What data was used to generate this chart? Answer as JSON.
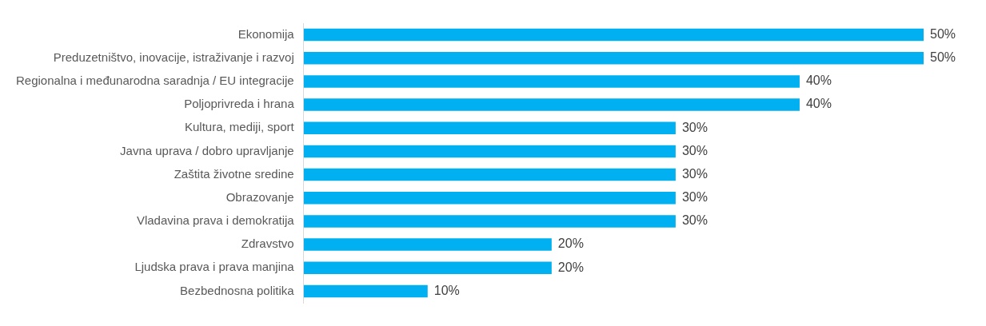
{
  "chart_data": {
    "type": "bar",
    "orientation": "horizontal",
    "categories": [
      "Ekonomija",
      "Preduzetništvo, inovacije, istraživanje i razvoj",
      "Regionalna i međunarodna saradnja / EU integracije",
      "Poljoprivreda i hrana",
      "Kultura, mediji, sport",
      "Javna uprava / dobro upravljanje",
      "Zaštita životne sredine",
      "Obrazovanje",
      "Vladavina prava i demokratija",
      "Zdravstvo",
      "Ljudska prava i prava manjina",
      "Bezbednosna politika"
    ],
    "values": [
      50,
      50,
      40,
      40,
      30,
      30,
      30,
      30,
      30,
      20,
      20,
      10
    ],
    "value_labels": [
      "50%",
      "50%",
      "40%",
      "40%",
      "30%",
      "30%",
      "30%",
      "30%",
      "30%",
      "20%",
      "20%",
      "10%"
    ],
    "color": "#00b0f0",
    "legend": false
  }
}
